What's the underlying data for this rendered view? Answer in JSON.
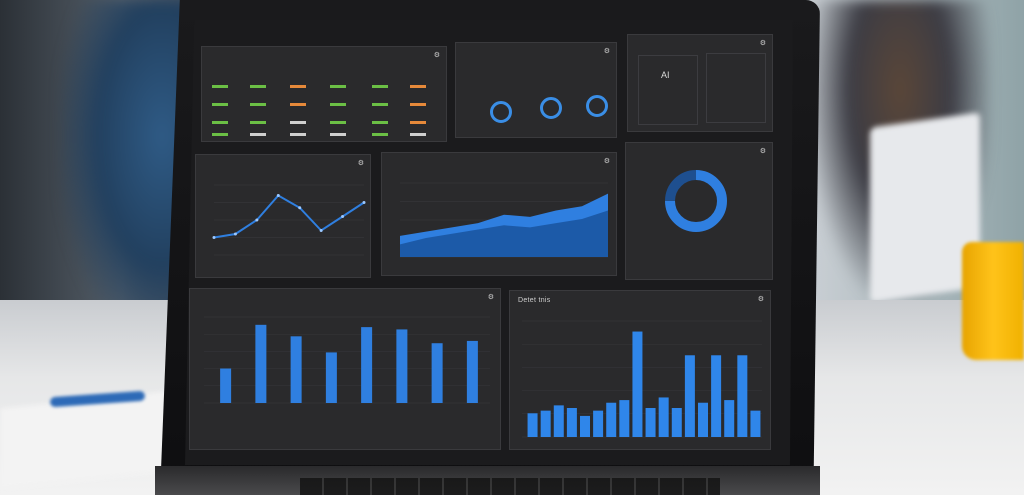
{
  "colors": {
    "panel_bg": "#2a2a2c",
    "accent_blue": "#2f7fe0",
    "green": "#6bbf45",
    "orange": "#e6893a"
  },
  "kpi_panel": {
    "rows_green": [
      "",
      "",
      "",
      ""
    ],
    "rows_orange": [
      "",
      "",
      ""
    ]
  },
  "gauges_panel": {},
  "summary_panel": {
    "left_value": "AI",
    "right_value": ""
  },
  "line_panel": {},
  "area_panel": {},
  "donut_panel": {
    "center_label": "",
    "value_label": ""
  },
  "bar_panel_left": {},
  "bar_panel_right": {
    "title": "Detet tnis"
  },
  "chart_data": [
    {
      "type": "line",
      "values": [
        10,
        12,
        20,
        34,
        27,
        14,
        22,
        30
      ],
      "ylim": [
        0,
        40
      ]
    },
    {
      "type": "area",
      "series": [
        {
          "values": [
            10,
            12,
            14,
            16,
            20,
            19,
            22,
            24,
            30
          ]
        },
        {
          "values": [
            6,
            9,
            11,
            13,
            15,
            14,
            16,
            18,
            22
          ]
        }
      ],
      "ylim": [
        0,
        35
      ]
    },
    {
      "type": "pie",
      "values": [
        75,
        25
      ]
    },
    {
      "type": "bar",
      "values": [
        30,
        68,
        58,
        44,
        66,
        64,
        52,
        54
      ]
    },
    {
      "type": "bar",
      "values": [
        18,
        20,
        24,
        22,
        16,
        20,
        26,
        28,
        80,
        22,
        30,
        22,
        62,
        26,
        62,
        28,
        62,
        20
      ]
    }
  ]
}
